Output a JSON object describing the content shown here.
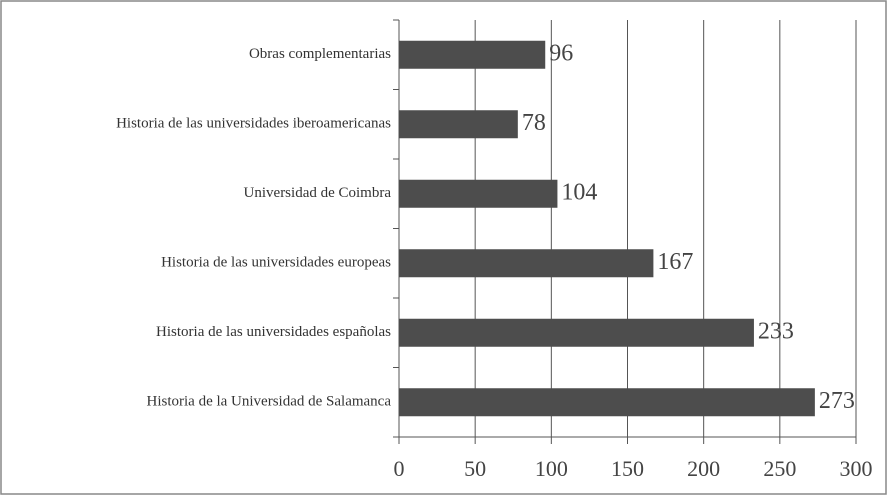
{
  "chart_data": {
    "type": "bar",
    "orientation": "horizontal",
    "categories": [
      "Obras complementarias",
      "Historia de las universidades iberoamericanas",
      "Universidad de Coimbra",
      "Historia de las universidades europeas",
      "Historia de las universidades españolas",
      "Historia de la Universidad de Salamanca"
    ],
    "values": [
      96,
      78,
      104,
      167,
      233,
      273
    ],
    "color": "#4d4d4d",
    "xlim": [
      0,
      300
    ],
    "xticks": [
      0,
      50,
      100,
      150,
      200,
      250,
      300
    ],
    "grid": true
  }
}
